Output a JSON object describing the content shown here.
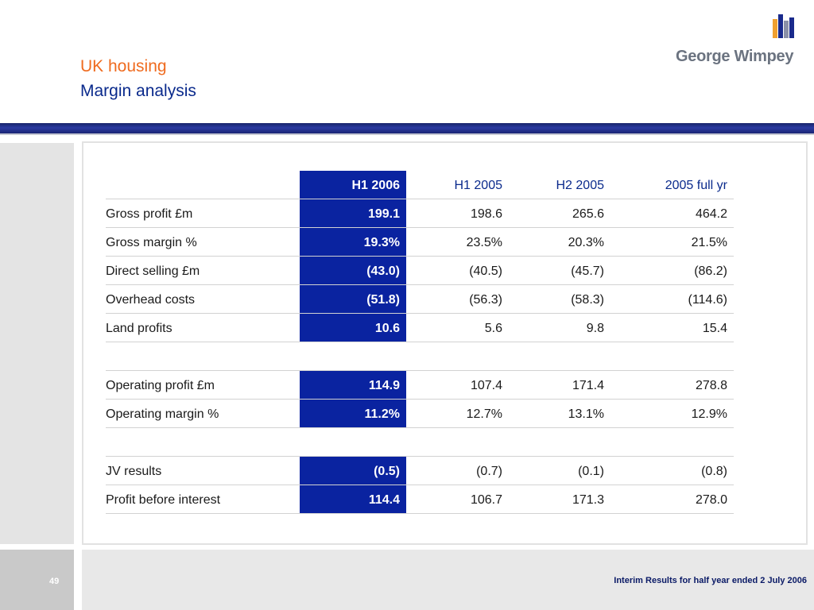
{
  "header": {
    "title_line1": "UK housing",
    "title_line2": "Margin analysis",
    "logo_text": "George Wimpey"
  },
  "colors": {
    "title_orange": "#ef6b1f",
    "title_blue": "#0a2a8c",
    "highlight_column": "#0a23a0",
    "band": "#2b3aa0"
  },
  "table": {
    "columns": [
      "H1 2006",
      "H1 2005",
      "H2 2005",
      "2005 full yr"
    ],
    "rows": [
      {
        "label": "Gross profit £m",
        "values": [
          "199.1",
          "198.6",
          "265.6",
          "464.2"
        ]
      },
      {
        "label": "Gross margin %",
        "values": [
          "19.3%",
          "23.5%",
          "20.3%",
          "21.5%"
        ]
      },
      {
        "label": "Direct selling £m",
        "values": [
          "(43.0)",
          "(40.5)",
          "(45.7)",
          "(86.2)"
        ]
      },
      {
        "label": "Overhead costs",
        "values": [
          "(51.8)",
          "(56.3)",
          "(58.3)",
          "(114.6)"
        ]
      },
      {
        "label": "Land profits",
        "values": [
          "10.6",
          "5.6",
          "9.8",
          "15.4"
        ]
      },
      {
        "label": "Operating profit £m",
        "values": [
          "114.9",
          "107.4",
          "171.4",
          "278.8"
        ]
      },
      {
        "label": "Operating margin %",
        "values": [
          "11.2%",
          "12.7%",
          "13.1%",
          "12.9%"
        ]
      },
      {
        "label": "JV results",
        "values": [
          "(0.5)",
          "(0.7)",
          "(0.1)",
          "(0.8)"
        ]
      },
      {
        "label": "Profit before interest",
        "values": [
          "114.4",
          "106.7",
          "171.3",
          "278.0"
        ]
      }
    ]
  },
  "footer": {
    "page_number": "49",
    "caption": "Interim Results for half year ended 2 July 2006"
  }
}
